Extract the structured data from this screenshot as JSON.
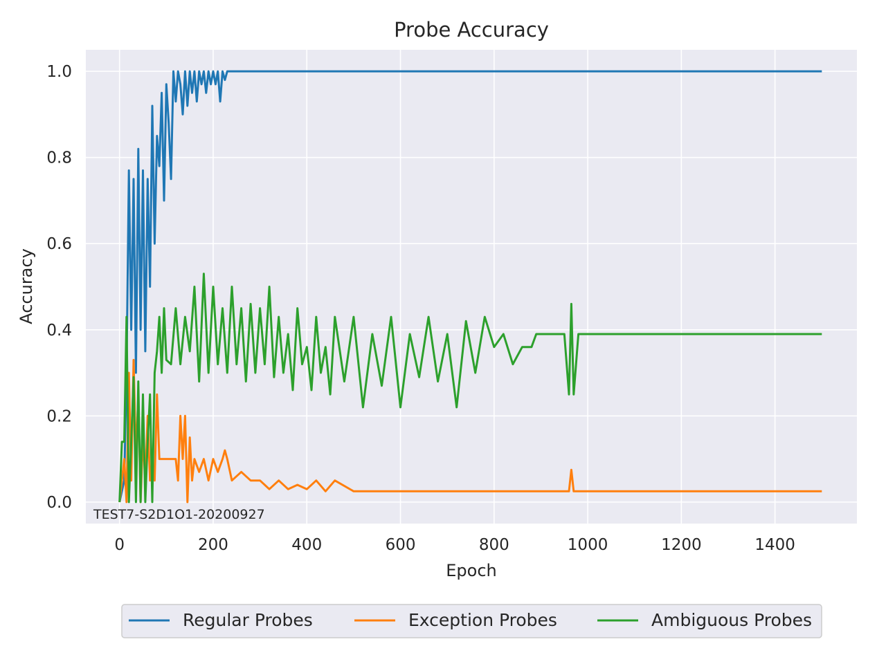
{
  "chart_data": {
    "type": "line",
    "title": "Probe Accuracy",
    "xlabel": "Epoch",
    "ylabel": "Accuracy",
    "xlim": [
      -72,
      1575
    ],
    "ylim": [
      -0.05,
      1.05
    ],
    "xticks": [
      0,
      200,
      400,
      600,
      800,
      1000,
      1200,
      1400
    ],
    "yticks": [
      0.0,
      0.2,
      0.4,
      0.6,
      0.8,
      1.0
    ],
    "xtick_labels": [
      "0",
      "200",
      "400",
      "600",
      "800",
      "1000",
      "1200",
      "1400"
    ],
    "ytick_labels": [
      "0.0",
      "0.2",
      "0.4",
      "0.6",
      "0.8",
      "1.0"
    ],
    "grid": true,
    "legend_position": "bottom-center",
    "annotation": "TEST7-S2D1O1-20200927",
    "colors": {
      "background": "#eaeaf2",
      "grid": "#ffffff",
      "regular": "#1f77b4",
      "exception": "#ff7f0e",
      "ambiguous": "#2ca02c"
    },
    "series": [
      {
        "name": "Regular Probes",
        "color": "#1f77b4",
        "x": [
          0,
          10,
          15,
          20,
          25,
          30,
          35,
          40,
          45,
          50,
          55,
          60,
          65,
          70,
          75,
          80,
          85,
          90,
          95,
          100,
          105,
          110,
          115,
          120,
          125,
          130,
          135,
          140,
          145,
          150,
          155,
          160,
          165,
          170,
          175,
          180,
          185,
          190,
          195,
          200,
          205,
          210,
          215,
          220,
          225,
          230,
          240,
          300,
          400,
          600,
          800,
          1000,
          1200,
          1500
        ],
        "y": [
          0.0,
          0.05,
          0.3,
          0.77,
          0.4,
          0.75,
          0.3,
          0.82,
          0.4,
          0.77,
          0.35,
          0.75,
          0.5,
          0.92,
          0.6,
          0.85,
          0.78,
          0.95,
          0.7,
          0.97,
          0.88,
          0.75,
          1.0,
          0.93,
          1.0,
          0.97,
          0.9,
          1.0,
          0.92,
          1.0,
          0.95,
          1.0,
          0.93,
          1.0,
          0.97,
          1.0,
          0.95,
          1.0,
          0.97,
          1.0,
          0.97,
          1.0,
          0.93,
          1.0,
          0.98,
          1.0,
          1.0,
          1.0,
          1.0,
          1.0,
          1.0,
          1.0,
          1.0,
          1.0
        ]
      },
      {
        "name": "Exception Probes",
        "color": "#ff7f0e",
        "x": [
          0,
          10,
          15,
          20,
          25,
          30,
          35,
          40,
          45,
          50,
          55,
          60,
          65,
          70,
          75,
          80,
          85,
          90,
          100,
          120,
          125,
          130,
          135,
          140,
          145,
          150,
          155,
          160,
          170,
          180,
          190,
          200,
          210,
          220,
          225,
          230,
          240,
          260,
          280,
          300,
          320,
          340,
          360,
          380,
          400,
          420,
          440,
          460,
          500,
          700,
          900,
          960,
          965,
          970,
          1000,
          1200,
          1500
        ],
        "y": [
          0.0,
          0.1,
          0.0,
          0.3,
          0.05,
          0.33,
          0.1,
          0.25,
          0.0,
          0.15,
          0.05,
          0.2,
          0.05,
          0.1,
          0.05,
          0.25,
          0.1,
          0.1,
          0.1,
          0.1,
          0.05,
          0.2,
          0.1,
          0.2,
          0.0,
          0.15,
          0.05,
          0.1,
          0.07,
          0.1,
          0.05,
          0.1,
          0.07,
          0.1,
          0.12,
          0.1,
          0.05,
          0.07,
          0.05,
          0.05,
          0.03,
          0.05,
          0.03,
          0.04,
          0.03,
          0.05,
          0.025,
          0.05,
          0.025,
          0.025,
          0.025,
          0.025,
          0.075,
          0.025,
          0.025,
          0.025,
          0.025
        ]
      },
      {
        "name": "Ambiguous Probes",
        "color": "#2ca02c",
        "x": [
          0,
          5,
          10,
          15,
          20,
          25,
          30,
          35,
          40,
          45,
          50,
          55,
          60,
          65,
          70,
          75,
          80,
          85,
          90,
          95,
          100,
          110,
          120,
          130,
          140,
          150,
          160,
          170,
          180,
          190,
          200,
          210,
          220,
          230,
          240,
          250,
          260,
          270,
          280,
          290,
          300,
          310,
          320,
          330,
          340,
          350,
          360,
          370,
          380,
          390,
          400,
          410,
          420,
          430,
          440,
          450,
          460,
          480,
          500,
          520,
          540,
          560,
          580,
          600,
          620,
          640,
          660,
          680,
          700,
          720,
          740,
          760,
          780,
          800,
          820,
          840,
          860,
          880,
          890,
          950,
          960,
          965,
          970,
          980,
          1000,
          1200,
          1500
        ],
        "y": [
          0.0,
          0.14,
          0.14,
          0.43,
          0.0,
          0.14,
          0.29,
          0.0,
          0.28,
          0.0,
          0.25,
          0.0,
          0.14,
          0.25,
          0.0,
          0.3,
          0.35,
          0.43,
          0.3,
          0.45,
          0.33,
          0.32,
          0.45,
          0.32,
          0.43,
          0.35,
          0.5,
          0.28,
          0.53,
          0.3,
          0.5,
          0.32,
          0.45,
          0.3,
          0.5,
          0.32,
          0.45,
          0.28,
          0.46,
          0.3,
          0.45,
          0.32,
          0.5,
          0.29,
          0.43,
          0.3,
          0.39,
          0.26,
          0.45,
          0.32,
          0.36,
          0.26,
          0.43,
          0.3,
          0.36,
          0.25,
          0.43,
          0.28,
          0.43,
          0.22,
          0.39,
          0.27,
          0.43,
          0.22,
          0.39,
          0.29,
          0.43,
          0.28,
          0.39,
          0.22,
          0.42,
          0.3,
          0.43,
          0.36,
          0.39,
          0.32,
          0.36,
          0.36,
          0.39,
          0.39,
          0.25,
          0.46,
          0.25,
          0.39,
          0.39,
          0.39,
          0.39
        ]
      }
    ]
  }
}
